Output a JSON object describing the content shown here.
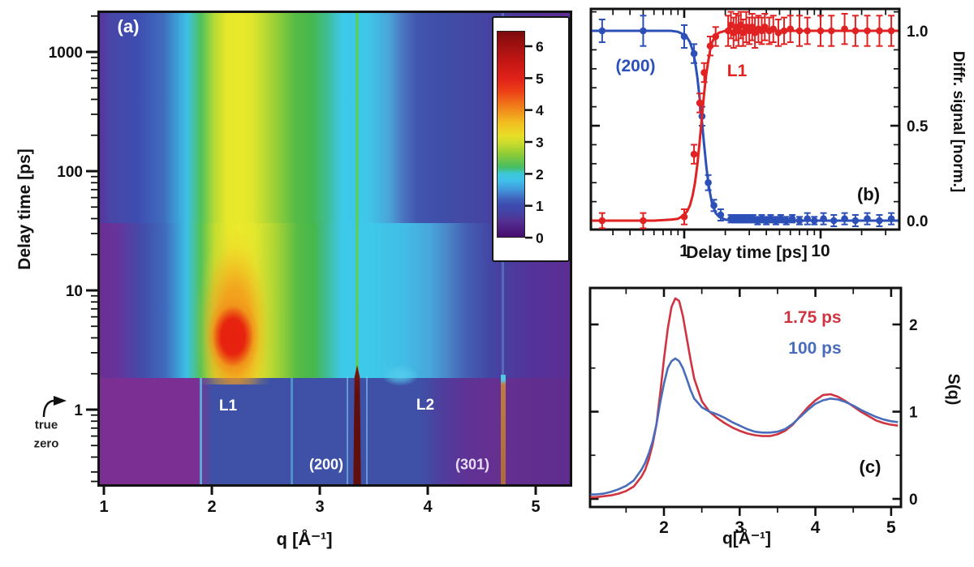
{
  "chart_data": [
    {
      "id": "panel_a",
      "type": "heatmap",
      "tag": "(a)",
      "xlabel": "q [Å⁻¹]",
      "ylabel": "Delay time [ps]",
      "x_range": [
        1,
        5.3
      ],
      "y_range_ps": [
        0.25,
        2200
      ],
      "y_scale": "log",
      "x_ticks": [
        {
          "v": 1,
          "label": "1"
        },
        {
          "v": 2,
          "label": "2"
        },
        {
          "v": 3,
          "label": "3"
        },
        {
          "v": 4,
          "label": "4"
        },
        {
          "v": 5,
          "label": "5"
        }
      ],
      "y_ticks": [
        {
          "v": 1000,
          "label": "1000"
        },
        {
          "v": 100,
          "label": "100"
        },
        {
          "v": 10,
          "label": "10"
        },
        {
          "v": 1,
          "label": "1"
        }
      ],
      "y_minor": [
        2000,
        900,
        800,
        700,
        600,
        500,
        400,
        300,
        200,
        90,
        80,
        70,
        60,
        50,
        40,
        30,
        20,
        9,
        8,
        7,
        6,
        5,
        4,
        3,
        2,
        0.9,
        0.8,
        0.7,
        0.6,
        0.5,
        0.4,
        0.3,
        0.25
      ],
      "true_zero": {
        "line1": "true",
        "line2": "zero"
      },
      "annotations": [
        {
          "text": "L1",
          "q": 2.2,
          "t": 1.1
        },
        {
          "text": "L2",
          "q": 4.0,
          "t": 1.15
        },
        {
          "text": "(200)",
          "q": 3.05,
          "t": 0.45
        },
        {
          "text": "(301)",
          "q": 4.4,
          "t": 0.45
        }
      ],
      "color_scale": {
        "min": 0,
        "max": 6.5,
        "ticks": [
          6,
          5,
          4,
          3,
          2,
          1,
          0
        ]
      },
      "features": [
        {
          "name": "liquid_peak_L1",
          "q_center": 2.2,
          "q_width": 1.0,
          "t_range_ps": [
            1.5,
            2200
          ],
          "value_max": 6,
          "note": "broad liquid peak, strongest (red) at t = 2-8 ps, yellow-green at later times"
        },
        {
          "name": "bragg_peak_200",
          "q": 3.35,
          "t_range_ps": [
            0.25,
            2
          ],
          "value": "saturated dark red below time zero, thin green residual line above"
        },
        {
          "name": "bragg_peak_301",
          "q": 4.7,
          "t_range_ps": [
            0.25,
            1.9
          ],
          "value": 4
        },
        {
          "name": "L2_liquid_shoulder",
          "q": 3.8,
          "t_range_ps": [
            1.5,
            3
          ],
          "value": 2
        },
        {
          "name": "pre_time_zero_background",
          "t_range_ps": [
            0.25,
            1.5
          ],
          "value": 1
        }
      ]
    },
    {
      "id": "panel_b",
      "type": "scatter",
      "tag": "(b)",
      "xlabel": "Delay time [ps]",
      "ylabel": "Diffr. signal [norm.]",
      "x_scale": "log",
      "x_range": [
        0.21,
        38
      ],
      "y_range": [
        -0.05,
        1.12
      ],
      "x_ticks": {
        "major": [
          {
            "v": 1,
            "label": "1"
          },
          {
            "v": 10,
            "label": "10"
          }
        ],
        "minor": [
          0.3,
          0.4,
          0.5,
          0.6,
          0.7,
          0.8,
          0.9,
          2,
          3,
          4,
          5,
          6,
          7,
          8,
          9,
          20,
          30
        ]
      },
      "y_ticks": {
        "major": [
          {
            "v": 0,
            "label": "0.0"
          },
          {
            "v": 0.5,
            "label": "0.5"
          },
          {
            "v": 1,
            "label": "1.0"
          }
        ],
        "minor": [
          0.1,
          0.2,
          0.3,
          0.4,
          0.6,
          0.7,
          0.8,
          0.9,
          1.1
        ]
      },
      "series": [
        {
          "name": "(200)",
          "color": "#2d50b8",
          "points": [
            [
              0.25,
              1.0,
              0.06
            ],
            [
              0.5,
              1.0,
              0.08
            ],
            [
              1.0,
              0.97,
              0.06
            ],
            [
              1.18,
              0.88,
              0.05
            ],
            [
              1.35,
              0.55,
              0.05
            ],
            [
              1.5,
              0.2,
              0.04
            ],
            [
              1.65,
              0.08,
              0.03
            ],
            [
              1.85,
              0.03,
              0.03
            ],
            [
              2.2,
              0.01,
              0.02
            ],
            [
              2.35,
              0.01,
              0.02
            ],
            [
              2.5,
              0.01,
              0.02
            ],
            [
              2.65,
              0.01,
              0.02
            ],
            [
              2.8,
              0.01,
              0.02
            ],
            [
              3.0,
              0.01,
              0.02
            ],
            [
              3.2,
              0.01,
              0.02
            ],
            [
              3.45,
              0.0,
              0.02
            ],
            [
              3.7,
              0.01,
              0.02
            ],
            [
              4.0,
              0.0,
              0.02
            ],
            [
              4.3,
              0.01,
              0.02
            ],
            [
              4.7,
              0.0,
              0.02
            ],
            [
              5.1,
              0.01,
              0.02
            ],
            [
              5.6,
              0.0,
              0.02
            ],
            [
              6.2,
              0.01,
              0.02
            ],
            [
              7.0,
              0.0,
              0.02
            ],
            [
              8.0,
              0.01,
              0.03
            ],
            [
              9.0,
              0.0,
              0.02
            ],
            [
              10.5,
              0.01,
              0.03
            ],
            [
              12.5,
              0.0,
              0.03
            ],
            [
              15,
              0.01,
              0.03
            ],
            [
              18,
              0.0,
              0.03
            ],
            [
              22,
              0.01,
              0.03
            ],
            [
              27,
              0.0,
              0.03
            ],
            [
              33,
              0.01,
              0.03
            ]
          ],
          "fit_x": [
            0.21,
            0.4,
            0.6,
            0.8,
            0.9,
            1.0,
            1.05,
            1.1,
            1.15,
            1.2,
            1.25,
            1.3,
            1.35,
            1.4,
            1.45,
            1.5,
            1.55,
            1.6,
            1.7,
            1.8,
            2.0,
            2.3,
            3,
            5,
            10,
            20,
            37
          ],
          "fit_y": [
            1,
            1,
            1,
            1,
            0.995,
            0.98,
            0.965,
            0.94,
            0.9,
            0.84,
            0.75,
            0.64,
            0.52,
            0.4,
            0.29,
            0.2,
            0.14,
            0.09,
            0.04,
            0.02,
            0.005,
            0,
            0,
            0,
            0,
            0,
            0
          ]
        },
        {
          "name": "L1",
          "color": "#e02222",
          "points": [
            [
              0.25,
              0.0,
              0.04
            ],
            [
              0.5,
              0.0,
              0.04
            ],
            [
              1.0,
              0.02,
              0.04
            ],
            [
              1.18,
              0.35,
              0.05
            ],
            [
              1.3,
              0.62,
              0.05
            ],
            [
              1.4,
              0.78,
              0.05
            ],
            [
              1.55,
              0.92,
              0.05
            ],
            [
              1.7,
              0.97,
              0.05
            ],
            [
              2.1,
              1.0,
              0.08
            ],
            [
              2.2,
              1.03,
              0.07
            ],
            [
              2.3,
              0.99,
              0.08
            ],
            [
              2.4,
              1.02,
              0.07
            ],
            [
              2.5,
              1.0,
              0.08
            ],
            [
              2.6,
              1.03,
              0.07
            ],
            [
              2.7,
              0.99,
              0.07
            ],
            [
              2.85,
              1.02,
              0.08
            ],
            [
              3.0,
              1.0,
              0.07
            ],
            [
              3.15,
              1.02,
              0.07
            ],
            [
              3.3,
              0.99,
              0.08
            ],
            [
              3.5,
              1.01,
              0.07
            ],
            [
              3.7,
              1.0,
              0.07
            ],
            [
              3.9,
              1.02,
              0.07
            ],
            [
              4.2,
              1.0,
              0.07
            ],
            [
              4.5,
              1.01,
              0.07
            ],
            [
              4.9,
              0.99,
              0.07
            ],
            [
              5.4,
              1.0,
              0.07
            ],
            [
              6.0,
              1.01,
              0.07
            ],
            [
              7.0,
              1.0,
              0.08
            ],
            [
              8.0,
              1.0,
              0.07
            ],
            [
              10,
              1.0,
              0.08
            ],
            [
              12,
              1.0,
              0.08
            ],
            [
              15,
              1.01,
              0.08
            ],
            [
              18,
              1.0,
              0.08
            ],
            [
              22,
              1.0,
              0.08
            ],
            [
              27,
              1.0,
              0.08
            ],
            [
              33,
              1.0,
              0.08
            ]
          ],
          "fit_x": [
            0.21,
            0.4,
            0.6,
            0.8,
            0.9,
            1.0,
            1.05,
            1.1,
            1.15,
            1.2,
            1.25,
            1.3,
            1.35,
            1.4,
            1.45,
            1.5,
            1.55,
            1.6,
            1.7,
            1.8,
            2.0,
            2.3,
            3,
            5,
            10,
            20,
            37
          ],
          "fit_y": [
            0,
            0,
            0,
            0.005,
            0.01,
            0.03,
            0.05,
            0.08,
            0.13,
            0.2,
            0.3,
            0.42,
            0.55,
            0.67,
            0.77,
            0.84,
            0.9,
            0.94,
            0.975,
            0.99,
            1,
            1,
            1,
            1,
            1,
            1,
            1
          ]
        }
      ]
    },
    {
      "id": "panel_c",
      "type": "line",
      "tag": "(c)",
      "xlabel": "q[Å⁻¹]",
      "ylabel": "S(q)",
      "x_range": [
        1.03,
        5.1
      ],
      "y_range": [
        -0.09,
        2.35
      ],
      "x_ticks": {
        "major": [
          {
            "v": 2,
            "label": "2"
          },
          {
            "v": 3,
            "label": "3"
          },
          {
            "v": 4,
            "label": "4"
          },
          {
            "v": 5,
            "label": "5"
          }
        ],
        "minor": [
          1.5,
          2.5,
          3.5,
          4.5
        ]
      },
      "y_ticks": {
        "major": [
          {
            "v": 0,
            "label": "0"
          },
          {
            "v": 1,
            "label": "1"
          },
          {
            "v": 2,
            "label": "2"
          }
        ],
        "minor": [
          0.5,
          1.5
        ]
      },
      "x": [
        1.03,
        1.1,
        1.2,
        1.3,
        1.4,
        1.5,
        1.6,
        1.7,
        1.75,
        1.8,
        1.85,
        1.9,
        1.95,
        2.0,
        2.05,
        2.1,
        2.15,
        2.2,
        2.25,
        2.3,
        2.35,
        2.4,
        2.5,
        2.6,
        2.7,
        2.8,
        2.9,
        3.0,
        3.1,
        3.2,
        3.3,
        3.4,
        3.5,
        3.6,
        3.7,
        3.8,
        3.9,
        4.0,
        4.1,
        4.2,
        4.3,
        4.4,
        4.5,
        4.6,
        4.7,
        4.8,
        4.9,
        5.0,
        5.09
      ],
      "series": [
        {
          "name": "1.75 ps",
          "color": "#cf3440",
          "y": [
            0.02,
            0.02,
            0.03,
            0.04,
            0.06,
            0.09,
            0.14,
            0.25,
            0.33,
            0.45,
            0.62,
            0.85,
            1.2,
            1.6,
            1.95,
            2.2,
            2.3,
            2.27,
            2.1,
            1.85,
            1.6,
            1.38,
            1.12,
            1.0,
            0.93,
            0.87,
            0.82,
            0.78,
            0.75,
            0.73,
            0.72,
            0.72,
            0.74,
            0.78,
            0.85,
            0.95,
            1.05,
            1.13,
            1.19,
            1.2,
            1.17,
            1.12,
            1.06,
            1.0,
            0.95,
            0.9,
            0.87,
            0.85,
            0.84
          ]
        },
        {
          "name": "100 ps",
          "color": "#4a6cba",
          "y": [
            0.05,
            0.05,
            0.06,
            0.08,
            0.11,
            0.15,
            0.21,
            0.33,
            0.41,
            0.52,
            0.66,
            0.85,
            1.1,
            1.32,
            1.5,
            1.58,
            1.61,
            1.58,
            1.5,
            1.38,
            1.25,
            1.15,
            1.05,
            1.0,
            0.97,
            0.93,
            0.88,
            0.84,
            0.8,
            0.77,
            0.76,
            0.76,
            0.77,
            0.8,
            0.86,
            0.94,
            1.02,
            1.09,
            1.13,
            1.15,
            1.14,
            1.11,
            1.07,
            1.02,
            0.98,
            0.94,
            0.91,
            0.89,
            0.88
          ]
        }
      ]
    }
  ]
}
